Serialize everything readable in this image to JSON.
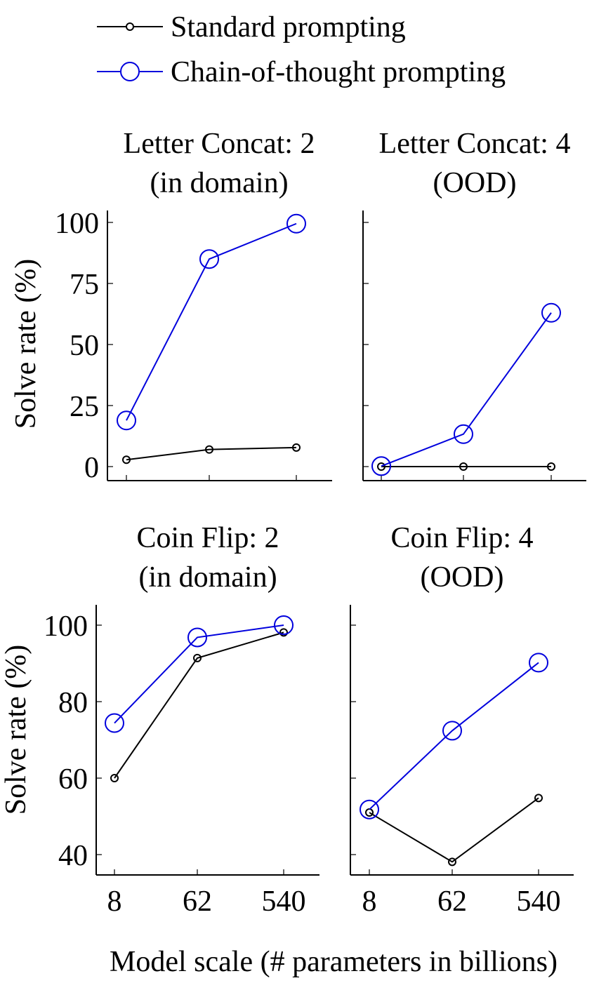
{
  "legend": {
    "items": [
      {
        "label": "Standard prompting",
        "color": "#000000",
        "marker": "small-circle"
      },
      {
        "label": "Chain-of-thought prompting",
        "color": "#0000dd",
        "marker": "large-circle"
      }
    ]
  },
  "xlabel": "Model scale (# parameters in billions)",
  "chart_data": [
    {
      "type": "line",
      "title": [
        "Letter Concat: 2",
        "(in domain)"
      ],
      "categories": [
        "8",
        "62",
        "540"
      ],
      "ylabel": "Solve rate (%)",
      "ylim": [
        0,
        100
      ],
      "yticks": [
        0,
        25,
        50,
        75,
        100
      ],
      "series": [
        {
          "name": "Standard prompting",
          "values": [
            2.8,
            7.0,
            7.8
          ]
        },
        {
          "name": "Chain-of-thought prompting",
          "values": [
            18.9,
            85.0,
            99.5
          ]
        }
      ]
    },
    {
      "type": "line",
      "title": [
        "Letter Concat: 4",
        "(OOD)"
      ],
      "categories": [
        "8",
        "62",
        "540"
      ],
      "ylabel": "",
      "ylim": [
        0,
        100
      ],
      "yticks": [
        0,
        25,
        50,
        75,
        100
      ],
      "series": [
        {
          "name": "Standard prompting",
          "values": [
            0.0,
            0.0,
            0.0
          ]
        },
        {
          "name": "Chain-of-thought prompting",
          "values": [
            0.2,
            13.3,
            63.0
          ]
        }
      ]
    },
    {
      "type": "line",
      "title": [
        "Coin Flip: 2",
        "(in domain)"
      ],
      "categories": [
        "8",
        "62",
        "540"
      ],
      "ylabel": "Solve rate (%)",
      "ylim": [
        40,
        100
      ],
      "yticks": [
        40,
        60,
        80,
        100
      ],
      "series": [
        {
          "name": "Standard prompting",
          "values": [
            60.0,
            91.4,
            98.1
          ]
        },
        {
          "name": "Chain-of-thought prompting",
          "values": [
            74.4,
            96.8,
            100.0
          ]
        }
      ]
    },
    {
      "type": "line",
      "title": [
        "Coin Flip: 4",
        "(OOD)"
      ],
      "categories": [
        "8",
        "62",
        "540"
      ],
      "ylabel": "",
      "ylim": [
        40,
        100
      ],
      "yticks": [
        40,
        60,
        80,
        100
      ],
      "series": [
        {
          "name": "Standard prompting",
          "values": [
            51.0,
            38.1,
            54.8
          ]
        },
        {
          "name": "Chain-of-thought prompting",
          "values": [
            51.8,
            72.4,
            90.2
          ]
        }
      ]
    }
  ]
}
